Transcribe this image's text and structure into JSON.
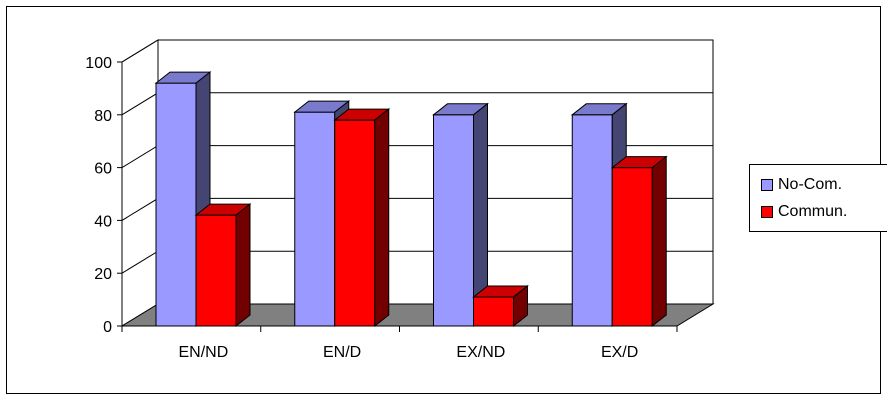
{
  "chart_data": {
    "type": "bar",
    "categories": [
      "EN/ND",
      "EN/D",
      "EX/ND",
      "EX/D"
    ],
    "series": [
      {
        "name": "No-Com.",
        "values": [
          92,
          81,
          80,
          80
        ],
        "color": "#9999ff"
      },
      {
        "name": "Commun.",
        "values": [
          42,
          78,
          11,
          60
        ],
        "color": "#ff0000"
      }
    ],
    "ylim": [
      0,
      100
    ],
    "yticks": [
      "0",
      "20",
      "40",
      "60",
      "80",
      "100"
    ],
    "grid": true,
    "legend_position": "right",
    "floor_color": "#808080"
  }
}
